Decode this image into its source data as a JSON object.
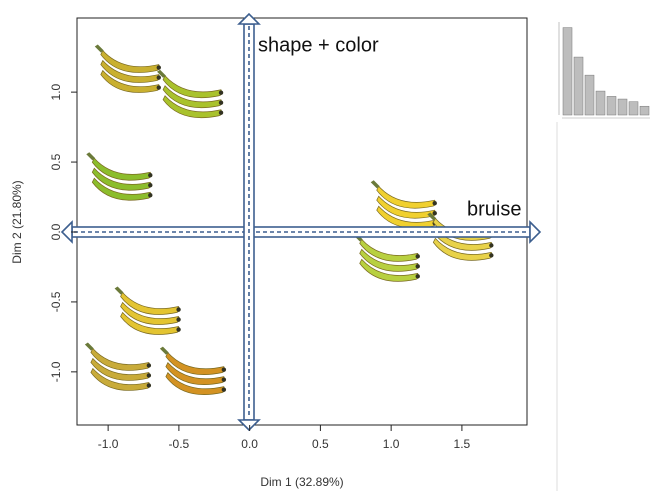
{
  "chart_data": [
    {
      "type": "scatter",
      "xlabel": "Dim 1 (32.89%)",
      "ylabel": "Dim 2 (21.80%)",
      "x": [
        -0.84,
        -0.4,
        -0.9,
        1.11,
        1.51,
        0.99,
        -0.7,
        -0.91,
        -0.38
      ],
      "y": [
        1.14,
        0.96,
        0.37,
        0.17,
        -0.06,
        -0.21,
        -0.59,
        -0.99,
        -1.02
      ],
      "colors": [
        "#c9b030",
        "#a9c22c",
        "#8cbd2c",
        "#f0d030",
        "#e8d24a",
        "#b8d040",
        "#e3c431",
        "#c8ab3a",
        "#d39222"
      ],
      "xlim": [
        -1.22,
        1.96
      ],
      "ylim": [
        -1.38,
        1.53
      ],
      "xticks": [
        {
          "value": -1,
          "label": "-1.0"
        },
        {
          "value": -0.5,
          "label": "-0.5"
        },
        {
          "value": 0,
          "label": "0.0"
        },
        {
          "value": 0.5,
          "label": "0.5"
        },
        {
          "value": 1,
          "label": "1.0"
        },
        {
          "value": 1.5,
          "label": "1.5"
        }
      ],
      "yticks": [
        {
          "value": -1,
          "label": "-1.0"
        },
        {
          "value": -0.5,
          "label": "-0.5"
        },
        {
          "value": 0,
          "label": "0.0"
        },
        {
          "value": 0.5,
          "label": "0.5"
        },
        {
          "value": 1,
          "label": "1.0"
        }
      ],
      "annotations": [
        "shape + color",
        "bruise"
      ]
    },
    {
      "type": "bar",
      "categories": [
        null,
        null,
        null,
        null,
        null,
        null,
        null,
        null
      ],
      "values": [
        32.89,
        21.8,
        15,
        9,
        7,
        6,
        5,
        3.3
      ],
      "color": "#bdbdbd",
      "ylim": [
        0,
        35
      ]
    }
  ]
}
